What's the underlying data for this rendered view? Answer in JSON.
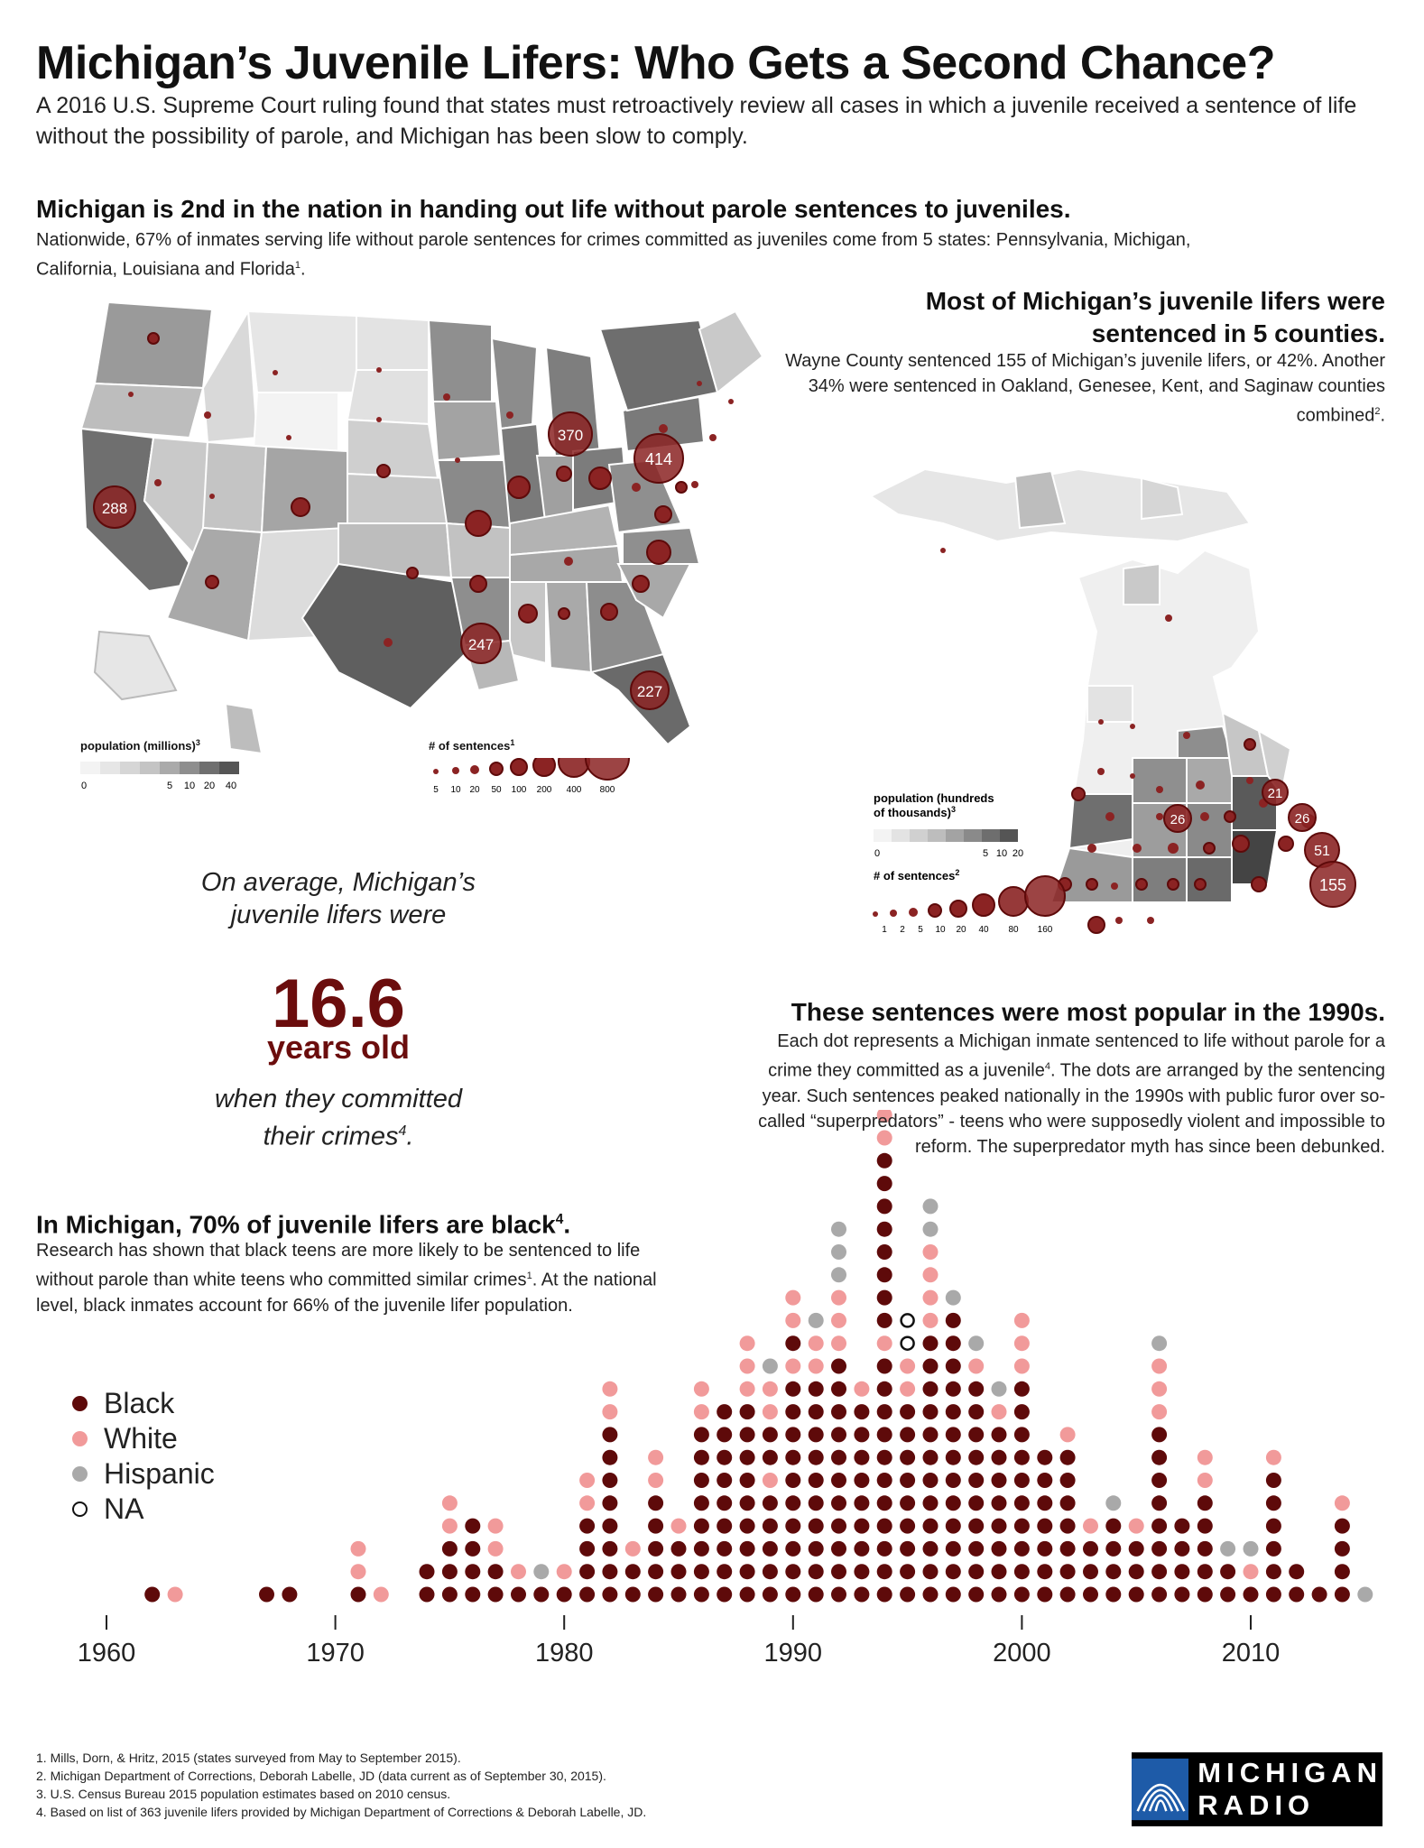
{
  "title": "Michigan’s Juvenile Lifers: Who Gets a Second Chance?",
  "intro": "A 2016 U.S. Supreme Court ruling found that states must retroactively review all cases in which a juvenile received a sentence of life without the possibility of parole, and Michigan has been slow to comply.",
  "national": {
    "heading": "Michigan is 2nd in the nation in handing out life without parole sentences to juveniles.",
    "body": "Nationwide, 67% of inmates serving life without parole sentences for crimes committed as juveniles come from 5 states: Pennsylvania, Michigan, California, Louisiana and Florida",
    "body_sup": "1",
    "body_end": "."
  },
  "county": {
    "heading_line1": "Most of Michigan’s juvenile lifers were",
    "heading_line2": "sentenced in 5 counties.",
    "body": "Wayne County sentenced 155 of Michigan’s juvenile lifers, or 42%. Another 34% were sentenced in Oakland, Genesee, Kent, and Saginaw counties combined",
    "body_sup": "2",
    "body_end": "."
  },
  "average": {
    "line1": "On average, Michigan’s",
    "line2": "juvenile lifers were",
    "value": "16.6",
    "unit": "years old",
    "line3": "when they committed",
    "line4": "their crimes",
    "sup": "4",
    "end": "."
  },
  "decade": {
    "heading": "These sentences were most popular in the 1990s.",
    "body": "Each dot represents a Michigan inmate sentenced to life without parole for a crime they committed as a juvenile",
    "body_sup": "4",
    "body_rest": ". The dots are arranged by the sentencing year. Such sentences peaked nationally in the 1990s with public furor over so-called “superpredators” - teens who were supposedly violent and impossible to reform. The superpredator myth has since been debunked."
  },
  "race": {
    "heading": "In Michigan, 70% of juvenile lifers are black",
    "heading_sup": "4",
    "heading_end": ".",
    "body_a": "Research has shown that black teens are more likely to be sentenced to life without parole than white teens who committed similar crimes",
    "body_sup": "1",
    "body_b": ". At the national level, black inmates account for 66% of the juvenile lifer population."
  },
  "colors": {
    "black": "#5e0a0a",
    "white": "#f19a9a",
    "hispanic": "#a9a9a9",
    "na": "#ffffff",
    "accent": "#6b0d0d",
    "bubble": "#8b2323"
  },
  "us_map": {
    "pop_legend_title": "population (millions)",
    "pop_legend_sup": "3",
    "pop_ticks": [
      "0",
      "5",
      "10",
      "20",
      "40"
    ],
    "sentence_legend_title": "# of sentences",
    "sentence_legend_sup": "1",
    "sentence_ticks": [
      "5",
      "10",
      "20",
      "50",
      "100",
      "200",
      "400",
      "800"
    ],
    "labeled_states": [
      {
        "state": "California",
        "value": "288"
      },
      {
        "state": "Michigan",
        "value": "370"
      },
      {
        "state": "Pennsylvania",
        "value": "414"
      },
      {
        "state": "Louisiana",
        "value": "247"
      },
      {
        "state": "Florida",
        "value": "227"
      }
    ]
  },
  "mi_map": {
    "pop_legend_title_line1": "population (hundreds",
    "pop_legend_title_line2": "of thousands)",
    "pop_legend_sup": "3",
    "pop_ticks": [
      "0",
      "5",
      "10",
      "20"
    ],
    "sentence_legend_title": "# of sentences",
    "sentence_legend_sup": "2",
    "sentence_ticks": [
      "1",
      "2",
      "5",
      "10",
      "20",
      "40",
      "80",
      "160"
    ],
    "labeled_counties": [
      {
        "county": "Saginaw",
        "value": "21"
      },
      {
        "county": "Kent",
        "value": "26"
      },
      {
        "county": "Genesee",
        "value": "26"
      },
      {
        "county": "Oakland",
        "value": "51"
      },
      {
        "county": "Wayne",
        "value": "155"
      }
    ]
  },
  "legend": [
    {
      "key": "black",
      "label": "Black"
    },
    {
      "key": "white",
      "label": "White"
    },
    {
      "key": "hispanic",
      "label": "Hispanic"
    },
    {
      "key": "na",
      "label": "NA"
    }
  ],
  "chart_data": {
    "type": "scatter",
    "title": "These sentences were most popular in the 1990s.",
    "xlabel": "",
    "ylabel": "",
    "x_ticks": [
      "1960",
      "1970",
      "1980",
      "1990",
      "2000",
      "2010"
    ],
    "xlim": [
      1960,
      2015
    ],
    "unit": "one dot per inmate, stacked by sentencing year",
    "series": [
      {
        "name": "Black",
        "key": "black"
      },
      {
        "name": "White",
        "key": "white"
      },
      {
        "name": "Hispanic",
        "key": "hispanic"
      },
      {
        "name": "NA",
        "key": "na"
      }
    ],
    "years": [
      {
        "year": 1962,
        "stack": [
          "B"
        ]
      },
      {
        "year": 1963,
        "stack": [
          "W"
        ]
      },
      {
        "year": 1967,
        "stack": [
          "B"
        ]
      },
      {
        "year": 1968,
        "stack": [
          "B"
        ]
      },
      {
        "year": 1971,
        "stack": [
          "B",
          "W",
          "W"
        ]
      },
      {
        "year": 1972,
        "stack": [
          "W"
        ]
      },
      {
        "year": 1974,
        "stack": [
          "B",
          "B"
        ]
      },
      {
        "year": 1975,
        "stack": [
          "B",
          "B",
          "B",
          "W",
          "W"
        ]
      },
      {
        "year": 1976,
        "stack": [
          "B",
          "B",
          "B",
          "B"
        ]
      },
      {
        "year": 1977,
        "stack": [
          "B",
          "B",
          "W",
          "W"
        ]
      },
      {
        "year": 1978,
        "stack": [
          "B",
          "W"
        ]
      },
      {
        "year": 1979,
        "stack": [
          "B",
          "H"
        ]
      },
      {
        "year": 1980,
        "stack": [
          "B",
          "W"
        ]
      },
      {
        "year": 1981,
        "stack": [
          "B",
          "B",
          "B",
          "B",
          "W",
          "W"
        ]
      },
      {
        "year": 1982,
        "stack": [
          "B",
          "B",
          "B",
          "B",
          "B",
          "B",
          "B",
          "B",
          "W",
          "W"
        ]
      },
      {
        "year": 1983,
        "stack": [
          "B",
          "B",
          "W"
        ]
      },
      {
        "year": 1984,
        "stack": [
          "B",
          "B",
          "B",
          "B",
          "B",
          "W",
          "W"
        ]
      },
      {
        "year": 1985,
        "stack": [
          "B",
          "B",
          "B",
          "W"
        ]
      },
      {
        "year": 1986,
        "stack": [
          "B",
          "B",
          "B",
          "B",
          "B",
          "B",
          "B",
          "B",
          "W",
          "W"
        ]
      },
      {
        "year": 1987,
        "stack": [
          "B",
          "B",
          "B",
          "B",
          "B",
          "B",
          "B",
          "B",
          "B"
        ]
      },
      {
        "year": 1988,
        "stack": [
          "B",
          "B",
          "B",
          "B",
          "B",
          "B",
          "B",
          "B",
          "B",
          "W",
          "W",
          "W"
        ]
      },
      {
        "year": 1989,
        "stack": [
          "B",
          "B",
          "B",
          "B",
          "B",
          "W",
          "B",
          "B",
          "W",
          "W",
          "H"
        ]
      },
      {
        "year": 1990,
        "stack": [
          "B",
          "B",
          "B",
          "B",
          "B",
          "B",
          "B",
          "B",
          "B",
          "B",
          "W",
          "B",
          "W",
          "W"
        ]
      },
      {
        "year": 1991,
        "stack": [
          "B",
          "B",
          "B",
          "B",
          "B",
          "B",
          "B",
          "B",
          "B",
          "B",
          "W",
          "W",
          "H"
        ]
      },
      {
        "year": 1992,
        "stack": [
          "B",
          "B",
          "B",
          "B",
          "B",
          "B",
          "B",
          "B",
          "B",
          "B",
          "B",
          "W",
          "W",
          "W",
          "H",
          "H",
          "H"
        ]
      },
      {
        "year": 1993,
        "stack": [
          "B",
          "B",
          "B",
          "B",
          "B",
          "B",
          "B",
          "B",
          "B",
          "W"
        ]
      },
      {
        "year": 1994,
        "stack": [
          "B",
          "B",
          "B",
          "B",
          "B",
          "B",
          "B",
          "B",
          "B",
          "B",
          "B",
          "W",
          "B",
          "B",
          "B",
          "B",
          "B",
          "B",
          "B",
          "B",
          "W",
          "W",
          "W",
          "W",
          "W"
        ]
      },
      {
        "year": 1995,
        "stack": [
          "B",
          "B",
          "B",
          "B",
          "B",
          "B",
          "B",
          "B",
          "B",
          "W",
          "W",
          "N",
          "N"
        ]
      },
      {
        "year": 1996,
        "stack": [
          "B",
          "B",
          "B",
          "B",
          "B",
          "B",
          "B",
          "B",
          "B",
          "B",
          "B",
          "B",
          "W",
          "W",
          "W",
          "W",
          "H",
          "H"
        ]
      },
      {
        "year": 1997,
        "stack": [
          "B",
          "B",
          "B",
          "B",
          "B",
          "B",
          "B",
          "B",
          "B",
          "B",
          "B",
          "B",
          "B",
          "H"
        ]
      },
      {
        "year": 1998,
        "stack": [
          "B",
          "B",
          "B",
          "B",
          "B",
          "B",
          "B",
          "B",
          "B",
          "B",
          "W",
          "H"
        ]
      },
      {
        "year": 1999,
        "stack": [
          "B",
          "B",
          "B",
          "B",
          "B",
          "B",
          "B",
          "B",
          "W",
          "H"
        ]
      },
      {
        "year": 2000,
        "stack": [
          "B",
          "B",
          "B",
          "B",
          "B",
          "B",
          "B",
          "B",
          "B",
          "B",
          "W",
          "W",
          "W"
        ]
      },
      {
        "year": 2001,
        "stack": [
          "B",
          "B",
          "B",
          "B",
          "B",
          "B",
          "B"
        ]
      },
      {
        "year": 2002,
        "stack": [
          "B",
          "B",
          "B",
          "B",
          "B",
          "B",
          "B",
          "W"
        ]
      },
      {
        "year": 2003,
        "stack": [
          "B",
          "B",
          "B",
          "W"
        ]
      },
      {
        "year": 2004,
        "stack": [
          "B",
          "B",
          "B",
          "B",
          "H"
        ]
      },
      {
        "year": 2005,
        "stack": [
          "B",
          "B",
          "B",
          "W"
        ]
      },
      {
        "year": 2006,
        "stack": [
          "B",
          "B",
          "B",
          "B",
          "B",
          "B",
          "B",
          "B",
          "W",
          "W",
          "W",
          "H"
        ]
      },
      {
        "year": 2007,
        "stack": [
          "B",
          "B",
          "B",
          "B"
        ]
      },
      {
        "year": 2008,
        "stack": [
          "B",
          "B",
          "B",
          "B",
          "B",
          "W",
          "W"
        ]
      },
      {
        "year": 2009,
        "stack": [
          "B",
          "B",
          "H"
        ]
      },
      {
        "year": 2010,
        "stack": [
          "B",
          "W",
          "H"
        ]
      },
      {
        "year": 2011,
        "stack": [
          "B",
          "B",
          "B",
          "B",
          "B",
          "B",
          "W"
        ]
      },
      {
        "year": 2012,
        "stack": [
          "B",
          "B"
        ]
      },
      {
        "year": 2013,
        "stack": [
          "B"
        ]
      },
      {
        "year": 2014,
        "stack": [
          "B",
          "B",
          "B",
          "B",
          "W"
        ]
      },
      {
        "year": 2015,
        "stack": [
          "H"
        ]
      }
    ]
  },
  "footnotes": [
    "1. Mills, Dorn, & Hritz, 2015 (states surveyed from May to September 2015).",
    "2. Michigan Department of Corrections, Deborah Labelle, JD (data current as of September 30, 2015).",
    "3. U.S. Census Bureau 2015 population estimates based on 2010 census.",
    "4. Based on list of 363 juvenile lifers provided by Michigan Department of Corrections & Deborah Labelle, JD."
  ],
  "logo": {
    "line1": "MICHIGAN",
    "line2": "RADIO",
    "icon": "michigan-radio-logo-icon"
  }
}
